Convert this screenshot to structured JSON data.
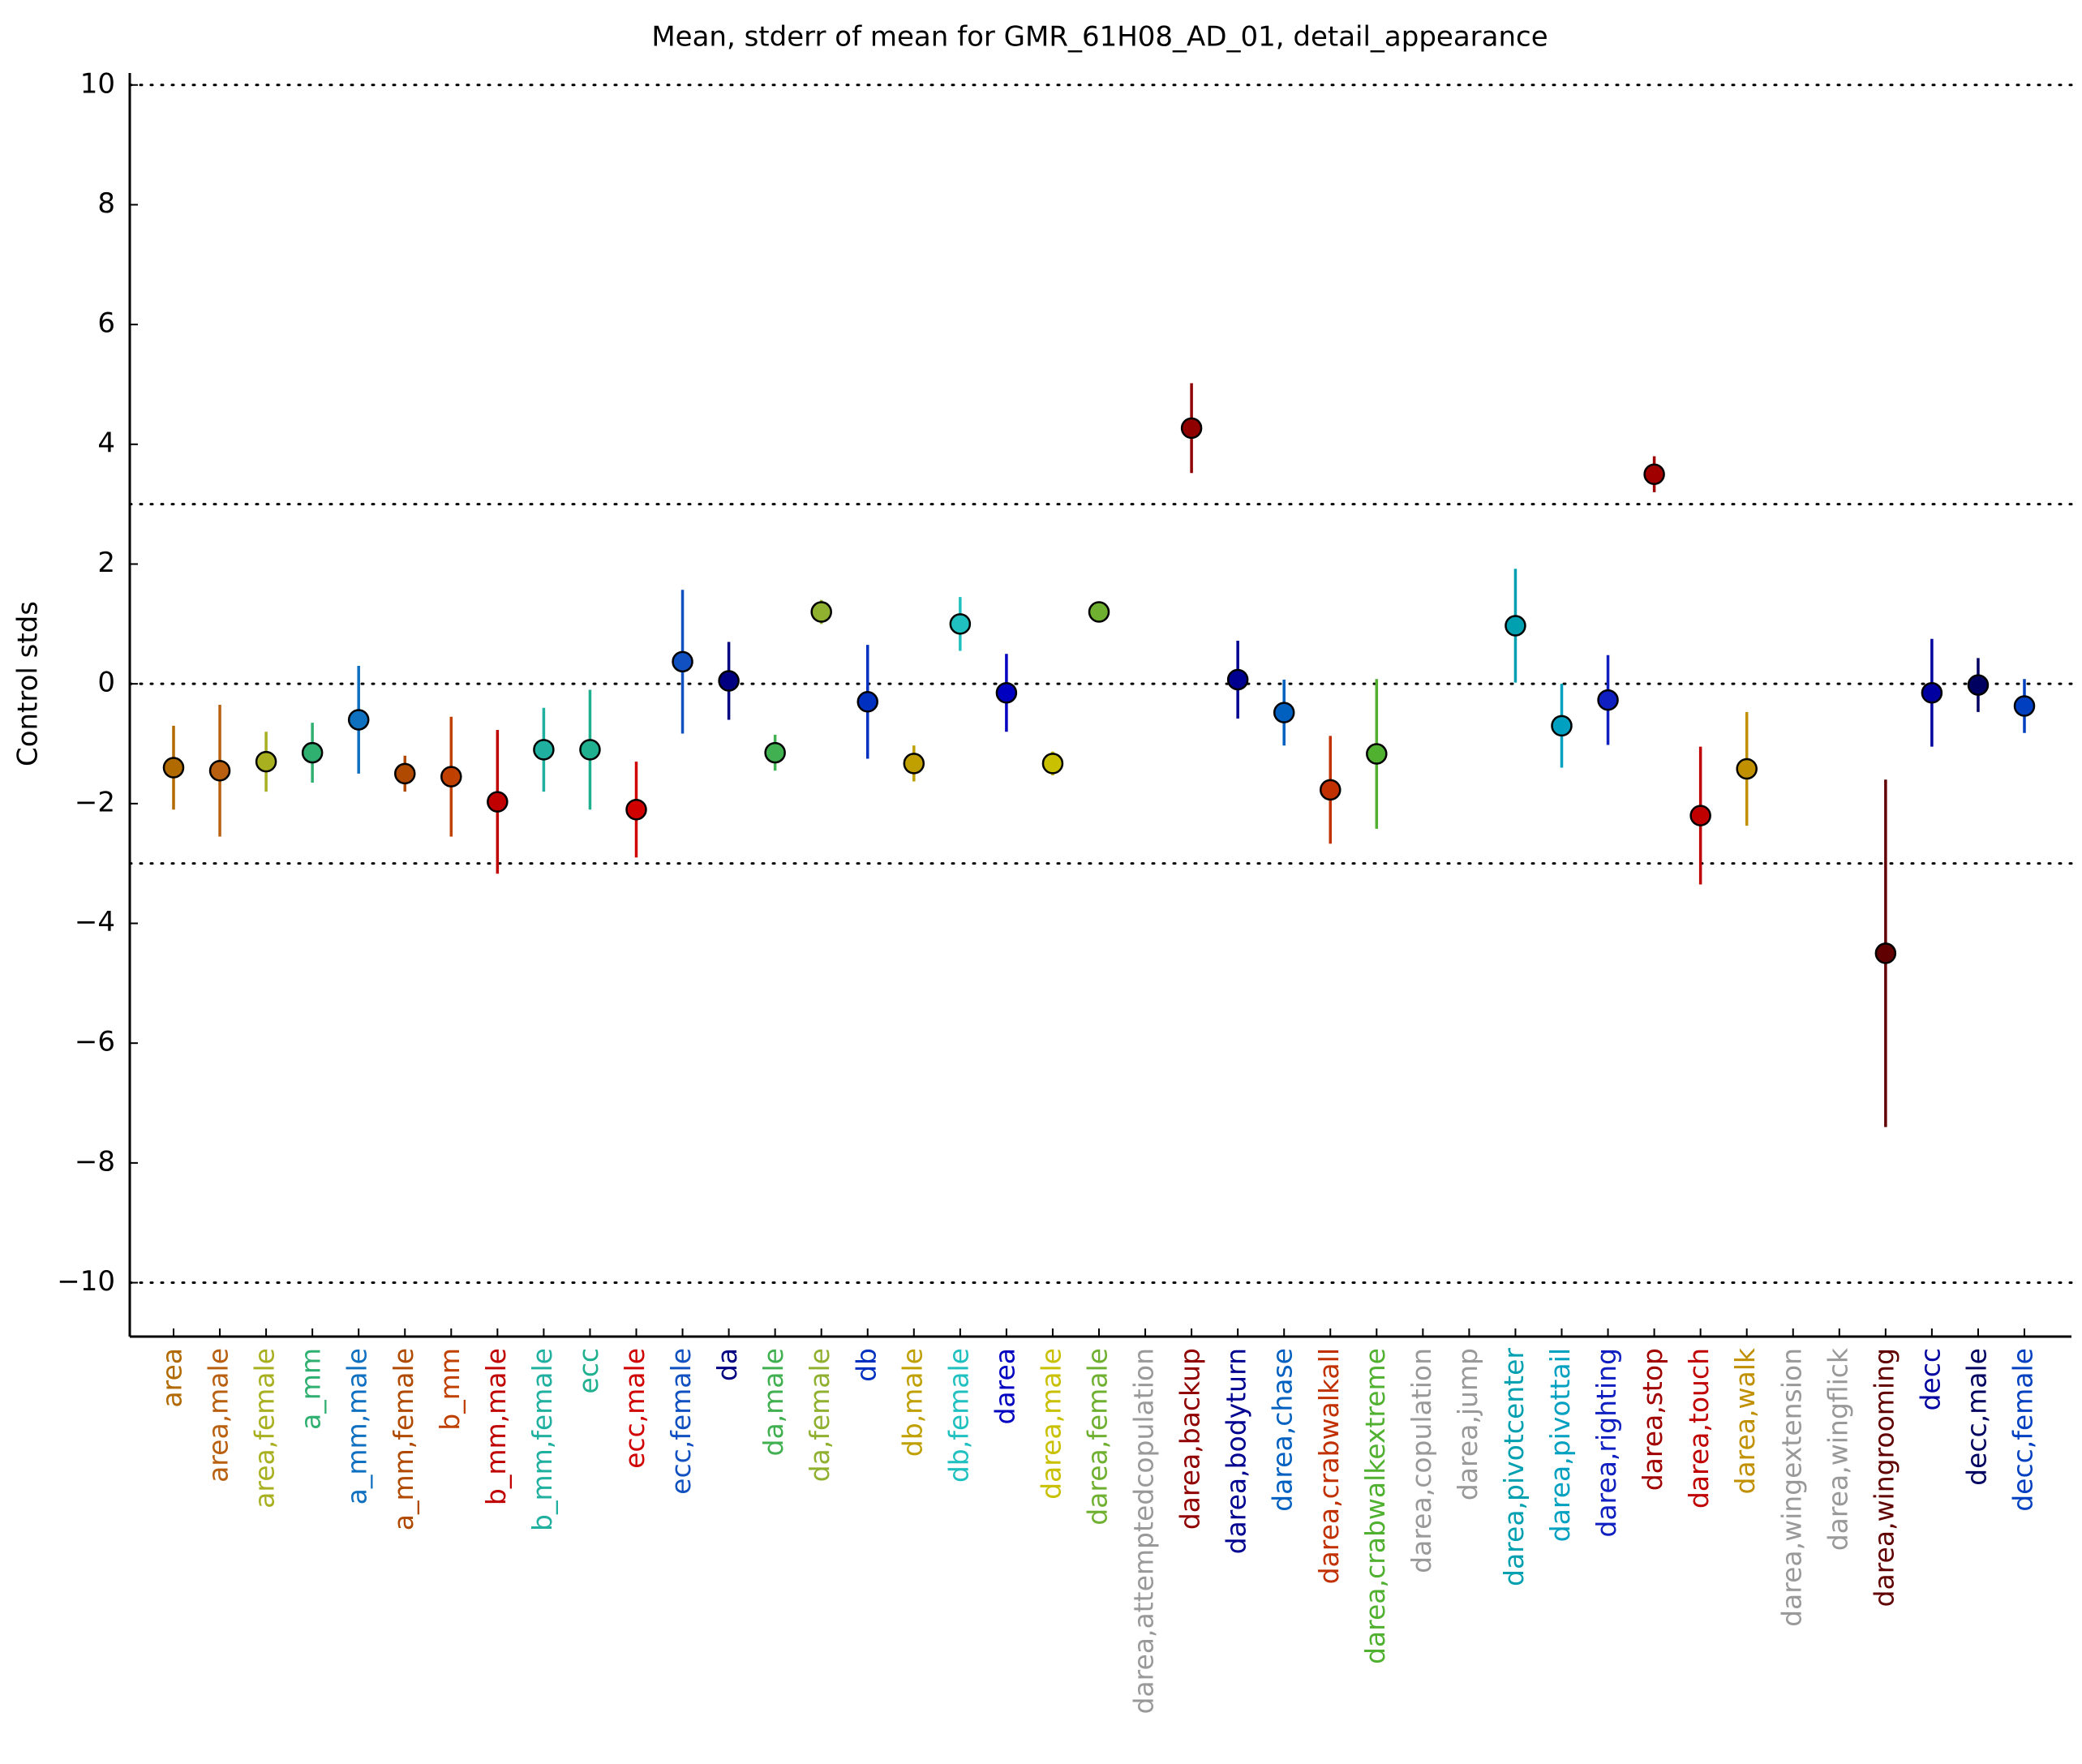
{
  "chart_data": {
    "type": "errorbar",
    "title": "Mean, stderr of mean for GMR_61H08_AD_01, detail_appearance",
    "y_label": "Control stds",
    "categories": [
      "area",
      "area,male",
      "area,female",
      "a_mm",
      "a_mm,male",
      "a_mm,female",
      "b_mm",
      "b_mm,male",
      "b_mm,female",
      "ecc",
      "ecc,male",
      "ecc,female",
      "da",
      "da,male",
      "da,female",
      "db",
      "db,male",
      "db,female",
      "darea",
      "darea,male",
      "darea,female",
      "darea,attemptedcopulation",
      "darea,backup",
      "darea,bodyturn",
      "darea,chase",
      "darea,crabwalkall",
      "darea,crabwalkextreme",
      "darea,copulation",
      "darea,jump",
      "darea,pivotcenter",
      "darea,pivottail",
      "darea,righting",
      "darea,stop",
      "darea,touch",
      "darea,walk",
      "darea,wingextension",
      "darea,wingflick",
      "darea,wingrooming",
      "decc",
      "decc,male",
      "decc,female"
    ],
    "values": [
      -1.4,
      -1.45,
      -1.3,
      -1.15,
      -0.6,
      -1.5,
      -1.55,
      -1.97,
      -1.1,
      -1.1,
      -2.1,
      0.37,
      0.05,
      -1.15,
      1.2,
      -0.3,
      -1.33,
      1.0,
      -0.15,
      -1.33,
      1.2,
      null,
      4.27,
      0.07,
      -0.48,
      -1.77,
      -1.17,
      null,
      null,
      0.97,
      -0.7,
      -0.27,
      3.5,
      -2.2,
      -1.42,
      null,
      null,
      -4.5,
      -0.15,
      -0.02,
      -0.37
    ],
    "errors": [
      0.7,
      1.1,
      0.5,
      0.5,
      0.9,
      0.3,
      1.0,
      1.2,
      0.7,
      1.0,
      0.8,
      1.2,
      0.65,
      0.3,
      0.2,
      0.95,
      0.3,
      0.45,
      0.65,
      0.2,
      0.15,
      null,
      0.75,
      0.65,
      0.55,
      0.9,
      1.25,
      null,
      null,
      0.95,
      0.7,
      0.75,
      0.3,
      1.15,
      0.95,
      null,
      null,
      2.9,
      0.9,
      0.45,
      0.45
    ],
    "colors": [
      "#b06a00",
      "#b86010",
      "#a8b020",
      "#30b070",
      "#1070c0",
      "#b04a00",
      "#c04000",
      "#c00000",
      "#20b0a0",
      "#20b090",
      "#d00000",
      "#1050c0",
      "#000080",
      "#40b050",
      "#90b030",
      "#0030c0",
      "#c0a000",
      "#20c0c0",
      "#0000c0",
      "#c8c000",
      "#70b030",
      "#999999",
      "#900000",
      "#000090",
      "#0060c0",
      "#c03000",
      "#50b030",
      "#999999",
      "#999999",
      "#00a0b0",
      "#00a0c0",
      "#1020c0",
      "#a00000",
      "#c00000",
      "#c09000",
      "#999999",
      "#999999",
      "#600000",
      "#0000a0",
      "#000060",
      "#0040c0"
    ],
    "ylim": [
      -10.9,
      10.2
    ],
    "yticks": [
      {
        "value": -10,
        "label": "−10"
      },
      {
        "value": -8,
        "label": "−8"
      },
      {
        "value": -6,
        "label": "−6"
      },
      {
        "value": -4,
        "label": "−4"
      },
      {
        "value": -2,
        "label": "−2"
      },
      0,
      2,
      4,
      6,
      8,
      10
    ],
    "reference_lines": [
      -10,
      -3,
      0,
      3,
      10
    ]
  }
}
